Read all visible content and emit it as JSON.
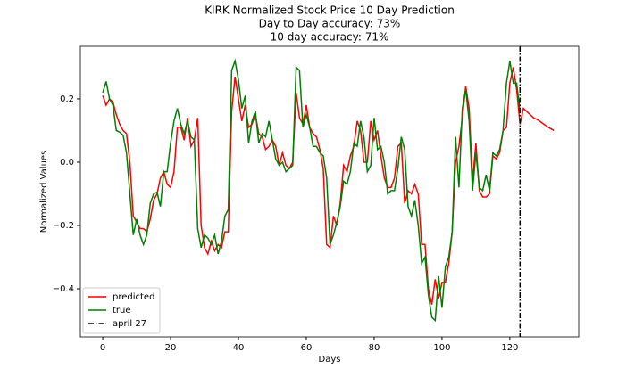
{
  "chart_data": {
    "type": "line",
    "title": "KIRK Normalized Stock Price 10 Day Prediction",
    "subtitle": [
      "Day to Day accuracy: 73%",
      "10 day accuracy: 71%"
    ],
    "x_label": "Days",
    "y_label": "Normalized Values",
    "xlim": [
      -6.6,
      140.3
    ],
    "ylim": [
      -0.552,
      0.366
    ],
    "xticks": [
      0,
      20,
      40,
      60,
      80,
      100,
      120
    ],
    "yticks": [
      {
        "value": -0.4,
        "label": "−0.4"
      },
      {
        "value": -0.2,
        "label": "−0.2"
      },
      {
        "value": 0,
        "label": "0.0"
      },
      {
        "value": 0.2,
        "label": "0.2"
      }
    ],
    "legend": "lower left",
    "series": [
      {
        "name": "predicted",
        "color": "#ff0000",
        "x": [
          0,
          1,
          2,
          3,
          4,
          5,
          6,
          7,
          8,
          9,
          10,
          11,
          12,
          13,
          14,
          15,
          16,
          17,
          18,
          19,
          20,
          21,
          22,
          23,
          24,
          25,
          26,
          27,
          28,
          29,
          30,
          31,
          32,
          33,
          34,
          35,
          36,
          37,
          38,
          39,
          40,
          41,
          42,
          43,
          44,
          45,
          46,
          47,
          48,
          49,
          50,
          51,
          52,
          53,
          54,
          55,
          56,
          57,
          58,
          59,
          60,
          61,
          62,
          63,
          64,
          65,
          66,
          67,
          68,
          69,
          70,
          71,
          72,
          73,
          74,
          75,
          76,
          77,
          78,
          79,
          80,
          81,
          82,
          83,
          84,
          85,
          86,
          87,
          88,
          89,
          90,
          91,
          92,
          93,
          94,
          95,
          96,
          97,
          98,
          99,
          100,
          101,
          102,
          103,
          104,
          105,
          106,
          107,
          108,
          109,
          110,
          111,
          112,
          113,
          114,
          115,
          116,
          117,
          118,
          119,
          120,
          121,
          122,
          123,
          124,
          125,
          126,
          127,
          128,
          129,
          130,
          131,
          132,
          133
        ],
        "values": [
          0.21,
          0.18,
          0.2,
          0.19,
          0.15,
          0.12,
          0.1,
          0.09,
          0.0,
          -0.17,
          -0.19,
          -0.21,
          -0.21,
          -0.22,
          -0.18,
          -0.12,
          -0.1,
          -0.05,
          -0.03,
          -0.07,
          -0.08,
          -0.03,
          0.11,
          0.11,
          0.07,
          0.14,
          0.05,
          0.07,
          0.14,
          -0.2,
          -0.27,
          -0.29,
          -0.25,
          -0.28,
          -0.26,
          -0.27,
          -0.22,
          -0.22,
          0.16,
          0.27,
          0.2,
          0.13,
          0.18,
          0.11,
          0.12,
          0.15,
          0.09,
          0.08,
          0.04,
          0.05,
          0.07,
          0.05,
          -0.01,
          0.03,
          -0.01,
          -0.02,
          0.0,
          0.22,
          0.14,
          0.12,
          0.18,
          0.11,
          0.09,
          0.08,
          0.04,
          -0.02,
          -0.26,
          -0.27,
          -0.17,
          -0.2,
          -0.13,
          -0.01,
          -0.03,
          0.02,
          0.05,
          0.13,
          0.1,
          0.0,
          0.0,
          0.13,
          0.07,
          0.1,
          0.02,
          -0.05,
          -0.08,
          -0.08,
          -0.05,
          0.05,
          0.06,
          -0.13,
          -0.09,
          -0.1,
          -0.07,
          -0.1,
          -0.26,
          -0.26,
          -0.4,
          -0.45,
          -0.37,
          -0.43,
          -0.38,
          -0.38,
          -0.32,
          -0.22,
          0.0,
          0.05,
          0.14,
          0.24,
          0.17,
          -0.06,
          0.06,
          -0.09,
          -0.11,
          -0.11,
          -0.1,
          0.02,
          0.01,
          0.03,
          0.1,
          0.11,
          0.25,
          0.3,
          0.23,
          0.12,
          0.17,
          0.16,
          0.15,
          0.14,
          0.135,
          0.128,
          0.12,
          0.113,
          0.106,
          0.1
        ]
      },
      {
        "name": "true",
        "color": "#008000",
        "x": [
          0,
          1,
          2,
          3,
          4,
          5,
          6,
          7,
          8,
          9,
          10,
          11,
          12,
          13,
          14,
          15,
          16,
          17,
          18,
          19,
          20,
          21,
          22,
          23,
          24,
          25,
          26,
          27,
          28,
          29,
          30,
          31,
          32,
          33,
          34,
          35,
          36,
          37,
          38,
          39,
          40,
          41,
          42,
          43,
          44,
          45,
          46,
          47,
          48,
          49,
          50,
          51,
          52,
          53,
          54,
          55,
          56,
          57,
          58,
          59,
          60,
          61,
          62,
          63,
          64,
          65,
          66,
          67,
          68,
          69,
          70,
          71,
          72,
          73,
          74,
          75,
          76,
          77,
          78,
          79,
          80,
          81,
          82,
          83,
          84,
          85,
          86,
          87,
          88,
          89,
          90,
          91,
          92,
          93,
          94,
          95,
          96,
          97,
          98,
          99,
          100,
          101,
          102,
          103,
          104,
          105,
          106,
          107,
          108,
          109,
          110,
          111,
          112,
          113,
          114,
          115,
          116,
          117,
          118,
          119,
          120,
          121,
          122,
          123
        ],
        "values": [
          0.22,
          0.255,
          0.2,
          0.18,
          0.1,
          0.095,
          0.085,
          0.03,
          -0.1,
          -0.23,
          -0.18,
          -0.23,
          -0.26,
          -0.23,
          -0.13,
          -0.1,
          -0.095,
          -0.14,
          -0.03,
          -0.03,
          0.06,
          0.13,
          0.17,
          0.12,
          0.09,
          0.13,
          0.08,
          0.07,
          -0.21,
          -0.27,
          -0.23,
          -0.24,
          -0.26,
          -0.23,
          -0.29,
          -0.25,
          -0.17,
          -0.15,
          0.29,
          0.32,
          0.26,
          0.17,
          0.21,
          0.06,
          0.13,
          0.16,
          0.06,
          0.09,
          0.08,
          0.13,
          0.07,
          0.01,
          -0.01,
          0.0,
          -0.03,
          -0.02,
          -0.01,
          0.3,
          0.29,
          0.11,
          0.15,
          0.11,
          0.05,
          0.05,
          0.03,
          0.02,
          -0.05,
          -0.26,
          -0.23,
          -0.19,
          -0.14,
          -0.06,
          -0.07,
          -0.03,
          0.06,
          0.05,
          0.13,
          0.08,
          -0.03,
          -0.01,
          0.14,
          0.04,
          0.05,
          0.0,
          -0.1,
          -0.09,
          -0.09,
          -0.02,
          0.08,
          0.04,
          -0.14,
          -0.17,
          -0.12,
          -0.2,
          -0.32,
          -0.3,
          -0.42,
          -0.49,
          -0.5,
          -0.36,
          -0.46,
          -0.33,
          -0.3,
          -0.22,
          0.08,
          -0.08,
          0.17,
          0.23,
          0.13,
          -0.09,
          0.03,
          -0.08,
          -0.09,
          -0.04,
          -0.09,
          0.03,
          0.02,
          0.04,
          0.1,
          0.25,
          0.32,
          0.25,
          0.25,
          0.16
        ]
      }
    ],
    "vline": {
      "name": "april 27",
      "x": 123,
      "color": "#000000"
    }
  }
}
